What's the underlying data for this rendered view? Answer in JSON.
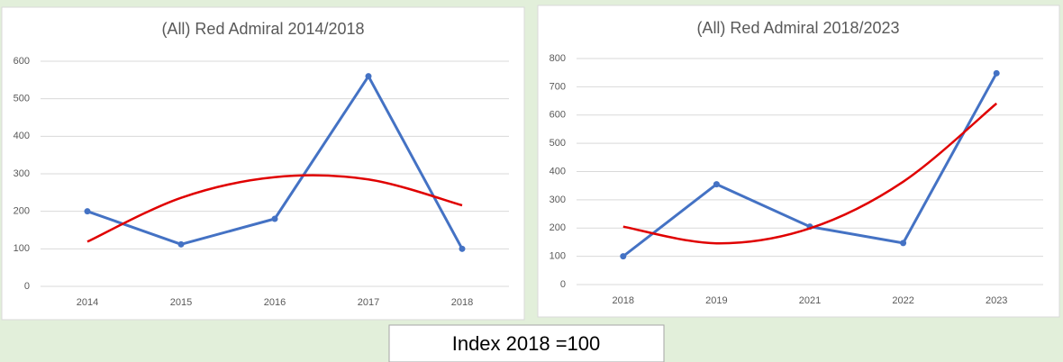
{
  "chart_data": [
    {
      "type": "line",
      "title": "(All) Red Admiral 2014/2018",
      "categories": [
        "2014",
        "2015",
        "2016",
        "2017",
        "2018"
      ],
      "series": [
        {
          "color": "#4472c4",
          "values": [
            200,
            112,
            180,
            560,
            100
          ]
        }
      ],
      "trendline": {
        "color": "#e00000",
        "values": [
          119,
          236,
          291,
          285,
          216
        ]
      },
      "ylim": [
        0,
        600
      ],
      "yticks": [
        0,
        100,
        200,
        300,
        400,
        500,
        600
      ],
      "grid": true
    },
    {
      "type": "line",
      "title": "(All) Red Admiral 2018/2023",
      "categories": [
        "2018",
        "2019",
        "2021",
        "2022",
        "2023"
      ],
      "series": [
        {
          "color": "#4472c4",
          "values": [
            100,
            355,
            205,
            147,
            748
          ]
        }
      ],
      "trendline": {
        "color": "#e00000",
        "values": [
          205,
          146,
          199,
          364,
          641
        ]
      },
      "ylim": [
        0,
        800
      ],
      "yticks": [
        0,
        100,
        200,
        300,
        400,
        500,
        600,
        700,
        800
      ],
      "grid": true
    }
  ],
  "caption": "Index 2018 =100"
}
